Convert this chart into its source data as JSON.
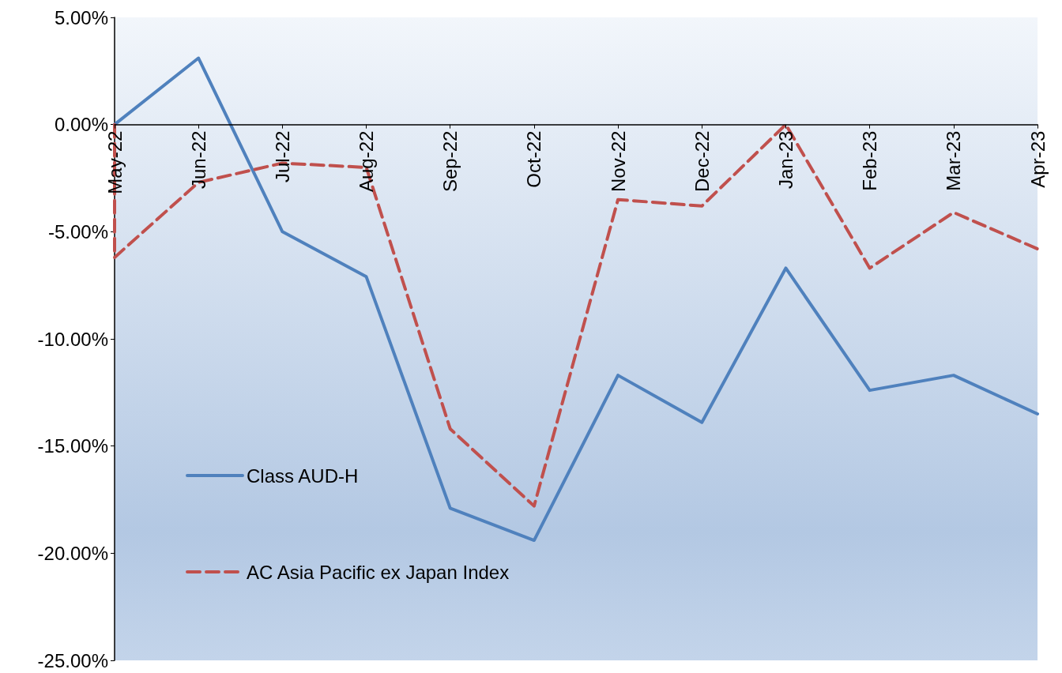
{
  "chart_data": {
    "type": "line",
    "categories": [
      "May-22",
      "Jun-22",
      "Jul-22",
      "Aug-22",
      "Sep-22",
      "Oct-22",
      "Nov-22",
      "Dec-22",
      "Jan-23",
      "Feb-23",
      "Mar-23",
      "Apr-23"
    ],
    "series": [
      {
        "name": "Class AUD-H",
        "color": "#4f81bd",
        "line_style": "solid",
        "values": [
          0,
          3.1,
          -5.0,
          -7.1,
          -17.9,
          -19.4,
          -11.7,
          -13.9,
          -6.7,
          -12.4,
          -11.7,
          -13.5
        ]
      },
      {
        "name": "AC Asia Pacific ex Japan Index",
        "color": "#c0504d",
        "line_style": "dashed",
        "x": [
          "May-22",
          "May-22",
          "Jun-22",
          "Jul-22",
          "Aug-22",
          "Sep-22",
          "Oct-22",
          "Nov-22",
          "Dec-22",
          "Jan-23",
          "Feb-23",
          "Mar-23",
          "Apr-23"
        ],
        "values": [
          0,
          -6.2,
          -2.7,
          -1.8,
          -2.0,
          -14.2,
          -17.8,
          -3.5,
          -3.8,
          0,
          -6.7,
          -4.1,
          -5.8
        ]
      }
    ],
    "ylim": [
      -25,
      5
    ],
    "yticks": [
      {
        "value": -25,
        "label": "-25.00%"
      },
      {
        "value": -20,
        "label": "-20.00%"
      },
      {
        "value": -15,
        "label": "-15.00%"
      },
      {
        "value": -10,
        "label": "-10.00%"
      },
      {
        "value": -5,
        "label": "-5.00%"
      },
      {
        "value": 0,
        "label": "0.00%"
      },
      {
        "value": 5,
        "label": "5.00%"
      }
    ],
    "marker": "none",
    "grid": false,
    "legend": "bottom left"
  }
}
